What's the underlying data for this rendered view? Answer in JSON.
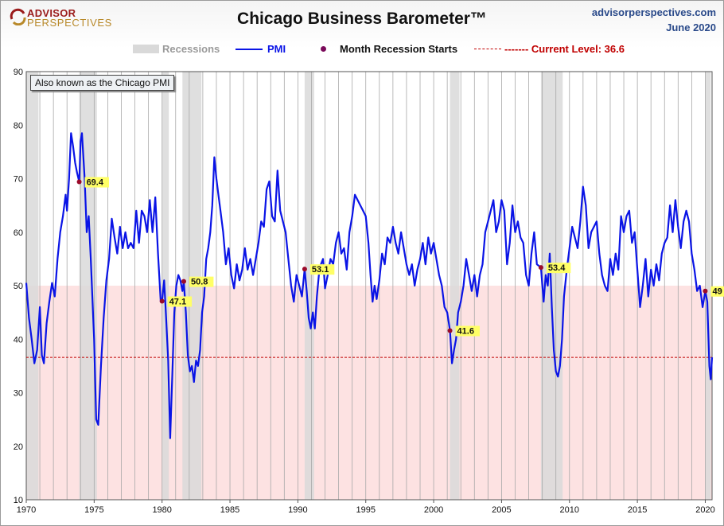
{
  "header": {
    "logo_top": "ADVISOR",
    "logo_bottom": "PERSPECTIVES",
    "title": "Chicago Business Barometer™",
    "site": "advisorperspectives.com",
    "date": "June 2020"
  },
  "legend": {
    "recessions": "Recessions",
    "pmi": "PMI",
    "recession_starts": "Month Recession Starts",
    "current_level": "------- Current Level: 36.6"
  },
  "note": "Also known as the Chicago PMI",
  "colors": {
    "pmi_line": "#0a14e6",
    "recession_band": "#d9d9d9",
    "below_50_shade": "#fde2e2",
    "current_line": "#c00000",
    "recession_dot": "#9b0a2a",
    "label_bg": "#ffff66"
  },
  "chart_data": {
    "type": "line",
    "title": "Chicago Business Barometer™",
    "xlabel": "",
    "ylabel": "",
    "xlim": [
      1970,
      2020.5
    ],
    "ylim": [
      10,
      90
    ],
    "y_ticks": [
      10,
      20,
      30,
      40,
      50,
      60,
      70,
      80,
      90
    ],
    "x_ticks": [
      1970,
      1975,
      1980,
      1985,
      1990,
      1995,
      2000,
      2005,
      2010,
      2015,
      2020
    ],
    "grid": "vertical gridlines at each year",
    "shaded_below": 50,
    "current_level": 36.6,
    "recessions": [
      [
        1970.0,
        1970.9
      ],
      [
        1973.9,
        1975.2
      ],
      [
        1980.0,
        1980.5
      ],
      [
        1981.5,
        1982.9
      ],
      [
        1990.5,
        1991.2
      ],
      [
        2001.2,
        2001.9
      ],
      [
        2007.9,
        2009.5
      ],
      [
        2020.0,
        2020.4
      ]
    ],
    "recession_starts": [
      {
        "x": 1973.9,
        "y": 69.4,
        "label": "69.4"
      },
      {
        "x": 1980.0,
        "y": 47.1,
        "label": "47.1"
      },
      {
        "x": 1981.6,
        "y": 50.8,
        "label": "50.8"
      },
      {
        "x": 1990.5,
        "y": 53.1,
        "label": "53.1"
      },
      {
        "x": 2001.2,
        "y": 41.6,
        "label": "41.6"
      },
      {
        "x": 2007.9,
        "y": 53.4,
        "label": "53.4"
      },
      {
        "x": 2020.0,
        "y": 49,
        "label": "49"
      }
    ],
    "series": [
      {
        "name": "PMI",
        "points": [
          [
            1970.0,
            50.5
          ],
          [
            1970.2,
            44
          ],
          [
            1970.4,
            40
          ],
          [
            1970.6,
            35.5
          ],
          [
            1970.8,
            38
          ],
          [
            1971.0,
            46
          ],
          [
            1971.15,
            37
          ],
          [
            1971.3,
            35.5
          ],
          [
            1971.5,
            43
          ],
          [
            1971.7,
            47
          ],
          [
            1971.9,
            50.5
          ],
          [
            1972.1,
            48
          ],
          [
            1972.3,
            55
          ],
          [
            1972.5,
            60
          ],
          [
            1972.7,
            63
          ],
          [
            1972.9,
            67
          ],
          [
            1973.0,
            64
          ],
          [
            1973.15,
            70
          ],
          [
            1973.3,
            78.5
          ],
          [
            1973.45,
            76
          ],
          [
            1973.6,
            73
          ],
          [
            1973.75,
            71
          ],
          [
            1973.9,
            69.4
          ],
          [
            1974.0,
            77
          ],
          [
            1974.1,
            78.5
          ],
          [
            1974.3,
            70
          ],
          [
            1974.45,
            60
          ],
          [
            1974.6,
            63
          ],
          [
            1974.75,
            55
          ],
          [
            1974.9,
            46
          ],
          [
            1975.0,
            40
          ],
          [
            1975.15,
            25
          ],
          [
            1975.3,
            24
          ],
          [
            1975.5,
            35
          ],
          [
            1975.7,
            44
          ],
          [
            1975.9,
            51
          ],
          [
            1976.1,
            55
          ],
          [
            1976.3,
            62.5
          ],
          [
            1976.5,
            59
          ],
          [
            1976.7,
            56
          ],
          [
            1976.9,
            61
          ],
          [
            1977.1,
            57
          ],
          [
            1977.3,
            60
          ],
          [
            1977.5,
            57
          ],
          [
            1977.7,
            58
          ],
          [
            1977.9,
            57
          ],
          [
            1978.1,
            64
          ],
          [
            1978.3,
            58
          ],
          [
            1978.5,
            64
          ],
          [
            1978.7,
            63
          ],
          [
            1978.9,
            60
          ],
          [
            1979.1,
            66
          ],
          [
            1979.3,
            60
          ],
          [
            1979.5,
            66.5
          ],
          [
            1979.7,
            56
          ],
          [
            1979.9,
            47
          ],
          [
            1980.0,
            47.1
          ],
          [
            1980.15,
            51
          ],
          [
            1980.3,
            44
          ],
          [
            1980.45,
            36
          ],
          [
            1980.6,
            21.5
          ],
          [
            1980.75,
            33
          ],
          [
            1980.9,
            45
          ],
          [
            1981.05,
            50
          ],
          [
            1981.2,
            52
          ],
          [
            1981.35,
            51
          ],
          [
            1981.5,
            49
          ],
          [
            1981.6,
            50.8
          ],
          [
            1981.75,
            45
          ],
          [
            1981.9,
            37
          ],
          [
            1982.05,
            34
          ],
          [
            1982.2,
            35
          ],
          [
            1982.35,
            32
          ],
          [
            1982.5,
            36
          ],
          [
            1982.65,
            35
          ],
          [
            1982.8,
            38
          ],
          [
            1982.95,
            45
          ],
          [
            1983.1,
            48
          ],
          [
            1983.25,
            55
          ],
          [
            1983.4,
            57
          ],
          [
            1983.55,
            60
          ],
          [
            1983.7,
            65
          ],
          [
            1983.85,
            74
          ],
          [
            1984.0,
            70
          ],
          [
            1984.15,
            67
          ],
          [
            1984.3,
            64
          ],
          [
            1984.5,
            60
          ],
          [
            1984.7,
            54
          ],
          [
            1984.9,
            57
          ],
          [
            1985.1,
            52
          ],
          [
            1985.3,
            49.5
          ],
          [
            1985.5,
            54
          ],
          [
            1985.7,
            51
          ],
          [
            1985.9,
            53
          ],
          [
            1986.1,
            57
          ],
          [
            1986.3,
            53
          ],
          [
            1986.5,
            55
          ],
          [
            1986.7,
            52
          ],
          [
            1986.9,
            55
          ],
          [
            1987.1,
            58
          ],
          [
            1987.3,
            62
          ],
          [
            1987.5,
            61
          ],
          [
            1987.7,
            68
          ],
          [
            1987.9,
            69.5
          ],
          [
            1988.1,
            63
          ],
          [
            1988.3,
            62
          ],
          [
            1988.5,
            71.5
          ],
          [
            1988.7,
            64
          ],
          [
            1988.9,
            62
          ],
          [
            1989.1,
            60
          ],
          [
            1989.3,
            55
          ],
          [
            1989.5,
            50
          ],
          [
            1989.7,
            47
          ],
          [
            1989.9,
            52
          ],
          [
            1990.1,
            50
          ],
          [
            1990.3,
            48
          ],
          [
            1990.5,
            53.1
          ],
          [
            1990.65,
            49
          ],
          [
            1990.8,
            44
          ],
          [
            1990.95,
            42
          ],
          [
            1991.1,
            45
          ],
          [
            1991.25,
            42
          ],
          [
            1991.4,
            48
          ],
          [
            1991.55,
            52
          ],
          [
            1991.7,
            54
          ],
          [
            1991.85,
            55
          ],
          [
            1992.0,
            49.5
          ],
          [
            1992.2,
            52
          ],
          [
            1992.4,
            55
          ],
          [
            1992.6,
            54
          ],
          [
            1992.8,
            58
          ],
          [
            1993.0,
            60
          ],
          [
            1993.2,
            56
          ],
          [
            1993.4,
            57
          ],
          [
            1993.6,
            53
          ],
          [
            1993.8,
            60
          ],
          [
            1994.0,
            63
          ],
          [
            1994.2,
            67
          ],
          [
            1994.4,
            66
          ],
          [
            1994.6,
            65
          ],
          [
            1994.8,
            64
          ],
          [
            1995.0,
            63
          ],
          [
            1995.2,
            58
          ],
          [
            1995.35,
            52
          ],
          [
            1995.5,
            47
          ],
          [
            1995.65,
            50
          ],
          [
            1995.8,
            47.5
          ],
          [
            1996.0,
            51
          ],
          [
            1996.2,
            56
          ],
          [
            1996.4,
            54
          ],
          [
            1996.6,
            59
          ],
          [
            1996.8,
            58
          ],
          [
            1997.0,
            61
          ],
          [
            1997.2,
            58
          ],
          [
            1997.4,
            56
          ],
          [
            1997.6,
            60
          ],
          [
            1997.8,
            57
          ],
          [
            1998.0,
            54
          ],
          [
            1998.2,
            52
          ],
          [
            1998.4,
            54
          ],
          [
            1998.6,
            50
          ],
          [
            1998.8,
            53
          ],
          [
            1999.0,
            55
          ],
          [
            1999.2,
            58
          ],
          [
            1999.4,
            54
          ],
          [
            1999.6,
            59
          ],
          [
            1999.8,
            56
          ],
          [
            2000.0,
            58
          ],
          [
            2000.2,
            55
          ],
          [
            2000.4,
            52
          ],
          [
            2000.6,
            50
          ],
          [
            2000.8,
            46
          ],
          [
            2001.0,
            45
          ],
          [
            2001.2,
            41.6
          ],
          [
            2001.35,
            35.5
          ],
          [
            2001.5,
            38
          ],
          [
            2001.65,
            40
          ],
          [
            2001.8,
            45
          ],
          [
            2002.0,
            47
          ],
          [
            2002.2,
            50
          ],
          [
            2002.4,
            55
          ],
          [
            2002.6,
            52
          ],
          [
            2002.8,
            49
          ],
          [
            2003.0,
            52
          ],
          [
            2003.2,
            48
          ],
          [
            2003.4,
            52
          ],
          [
            2003.6,
            54
          ],
          [
            2003.8,
            60
          ],
          [
            2004.0,
            62
          ],
          [
            2004.2,
            64
          ],
          [
            2004.4,
            66
          ],
          [
            2004.6,
            60
          ],
          [
            2004.8,
            62
          ],
          [
            2005.0,
            66
          ],
          [
            2005.2,
            64
          ],
          [
            2005.4,
            54
          ],
          [
            2005.6,
            58
          ],
          [
            2005.8,
            65
          ],
          [
            2006.0,
            60
          ],
          [
            2006.2,
            62
          ],
          [
            2006.4,
            59
          ],
          [
            2006.6,
            58
          ],
          [
            2006.8,
            52
          ],
          [
            2007.0,
            50
          ],
          [
            2007.2,
            56
          ],
          [
            2007.4,
            60
          ],
          [
            2007.6,
            54
          ],
          [
            2007.9,
            53.4
          ],
          [
            2008.1,
            47
          ],
          [
            2008.25,
            52
          ],
          [
            2008.4,
            50
          ],
          [
            2008.55,
            56
          ],
          [
            2008.7,
            46
          ],
          [
            2008.85,
            38
          ],
          [
            2009.0,
            34
          ],
          [
            2009.15,
            33
          ],
          [
            2009.3,
            35
          ],
          [
            2009.45,
            40
          ],
          [
            2009.6,
            48
          ],
          [
            2009.8,
            53
          ],
          [
            2010.0,
            57
          ],
          [
            2010.2,
            61
          ],
          [
            2010.4,
            59
          ],
          [
            2010.6,
            57
          ],
          [
            2010.8,
            62
          ],
          [
            2011.0,
            68.5
          ],
          [
            2011.2,
            65
          ],
          [
            2011.4,
            57
          ],
          [
            2011.6,
            60
          ],
          [
            2011.8,
            61
          ],
          [
            2012.0,
            62
          ],
          [
            2012.2,
            56
          ],
          [
            2012.4,
            52
          ],
          [
            2012.6,
            50
          ],
          [
            2012.8,
            49
          ],
          [
            2013.0,
            55
          ],
          [
            2013.2,
            52
          ],
          [
            2013.4,
            56
          ],
          [
            2013.6,
            53
          ],
          [
            2013.8,
            63
          ],
          [
            2014.0,
            60
          ],
          [
            2014.2,
            63
          ],
          [
            2014.4,
            64
          ],
          [
            2014.6,
            58
          ],
          [
            2014.8,
            60
          ],
          [
            2015.0,
            53
          ],
          [
            2015.2,
            46
          ],
          [
            2015.4,
            50
          ],
          [
            2015.6,
            55
          ],
          [
            2015.8,
            48
          ],
          [
            2016.0,
            53
          ],
          [
            2016.2,
            50
          ],
          [
            2016.4,
            54
          ],
          [
            2016.6,
            51
          ],
          [
            2016.8,
            56
          ],
          [
            2017.0,
            58
          ],
          [
            2017.2,
            59
          ],
          [
            2017.4,
            65
          ],
          [
            2017.6,
            60
          ],
          [
            2017.8,
            66
          ],
          [
            2018.0,
            61
          ],
          [
            2018.2,
            57
          ],
          [
            2018.4,
            62
          ],
          [
            2018.6,
            64
          ],
          [
            2018.8,
            62
          ],
          [
            2019.0,
            56
          ],
          [
            2019.2,
            53
          ],
          [
            2019.4,
            49
          ],
          [
            2019.6,
            50
          ],
          [
            2019.8,
            46
          ],
          [
            2020.0,
            49
          ],
          [
            2020.15,
            47
          ],
          [
            2020.3,
            35
          ],
          [
            2020.4,
            32.5
          ],
          [
            2020.5,
            36.6
          ]
        ]
      }
    ]
  }
}
